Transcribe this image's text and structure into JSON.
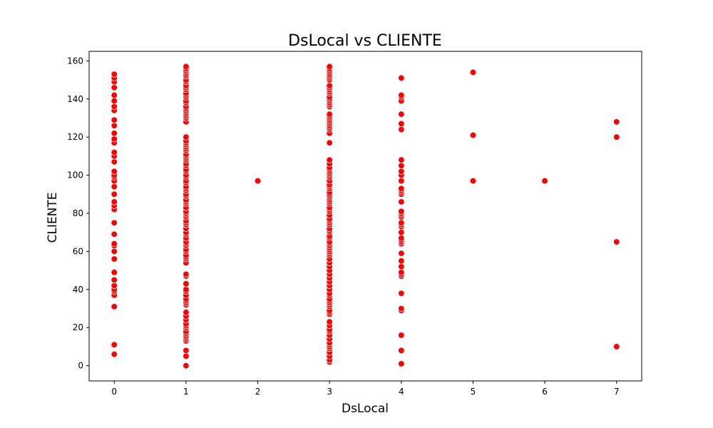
{
  "chart_data": {
    "type": "scatter",
    "title": "DsLocal vs CLIENTE",
    "xlabel": "DsLocal",
    "ylabel": "CLIENTE",
    "xlim": [
      -0.35,
      7.35
    ],
    "ylim": [
      -8,
      165
    ],
    "xticks": [
      0,
      1,
      2,
      3,
      4,
      5,
      6,
      7
    ],
    "yticks": [
      0,
      20,
      40,
      60,
      80,
      100,
      120,
      140,
      160
    ],
    "grid": false,
    "legend": "none",
    "marker_color": "#ff0000",
    "marker_edge_color": "#ffffff",
    "points": {
      "0": [
        6,
        11,
        31,
        37,
        39,
        40,
        42,
        45,
        49,
        56,
        60,
        63,
        64,
        69,
        75,
        82,
        84,
        86,
        90,
        94,
        97,
        99,
        100,
        102,
        107,
        110,
        112,
        117,
        119,
        122,
        126,
        129,
        134,
        136,
        139,
        142,
        146,
        149,
        151,
        153
      ],
      "1": [
        0,
        5,
        8,
        13,
        14,
        15,
        16,
        17,
        18,
        20,
        21,
        22,
        24,
        26,
        28,
        32,
        33,
        34,
        35,
        37,
        39,
        40,
        43,
        47,
        48,
        54,
        56,
        57,
        58,
        60,
        61,
        63,
        64,
        65,
        67,
        69,
        70,
        72,
        74,
        75,
        76,
        78,
        79,
        80,
        81,
        83,
        85,
        86,
        87,
        89,
        90,
        92,
        93,
        94,
        96,
        97,
        99,
        100,
        102,
        103,
        105,
        106,
        108,
        109,
        110,
        111,
        113,
        114,
        115,
        116,
        117,
        118,
        120,
        128,
        130,
        131,
        132,
        133,
        134,
        135,
        136,
        138,
        139,
        141,
        142,
        143,
        145,
        146,
        147,
        149,
        150,
        152,
        153,
        154,
        155,
        156,
        157
      ],
      "2": [
        97
      ],
      "3": [
        2,
        3,
        5,
        7,
        9,
        10,
        11,
        12,
        14,
        16,
        18,
        19,
        21,
        23,
        27,
        28,
        29,
        31,
        32,
        33,
        34,
        35,
        37,
        38,
        40,
        42,
        44,
        46,
        48,
        50,
        52,
        54,
        56,
        58,
        59,
        60,
        61,
        62,
        63,
        64,
        65,
        67,
        68,
        70,
        71,
        72,
        74,
        75,
        76,
        77,
        79,
        81,
        82,
        83,
        85,
        86,
        87,
        88,
        89,
        90,
        91,
        93,
        94,
        95,
        97,
        99,
        100,
        101,
        102,
        103,
        104,
        106,
        108,
        117,
        122,
        124,
        125,
        126,
        127,
        128,
        129,
        130,
        131,
        132,
        136,
        137,
        138,
        139,
        140,
        141,
        143,
        144,
        145,
        146,
        147,
        150,
        151,
        152,
        153,
        154,
        155,
        156,
        157
      ],
      "4": [
        1,
        8,
        16,
        29,
        30,
        38,
        47,
        48,
        49,
        52,
        55,
        59,
        64,
        65,
        66,
        67,
        70,
        73,
        74,
        75,
        78,
        79,
        80,
        81,
        86,
        90,
        91,
        92,
        93,
        97,
        100,
        102,
        105,
        108,
        124,
        127,
        132,
        139,
        141,
        142,
        151
      ],
      "5": [
        97,
        121,
        154
      ],
      "6": [
        97
      ],
      "7": [
        10,
        65,
        120,
        128
      ]
    }
  }
}
